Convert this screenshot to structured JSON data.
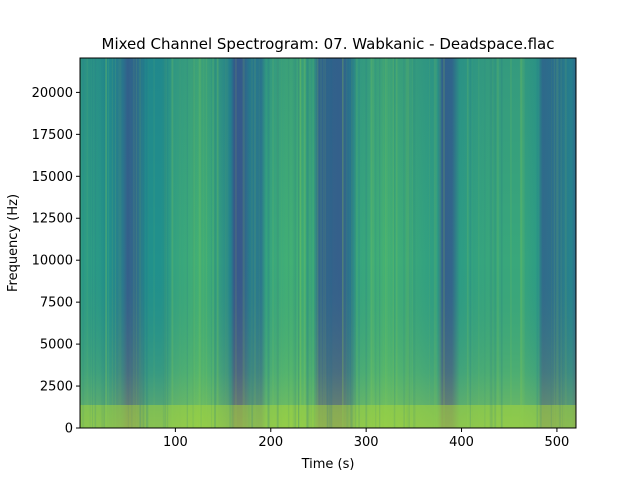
{
  "chart_data": {
    "type": "heatmap",
    "title": "Mixed Channel Spectrogram: 07. Wabkanic - Deadspace.flac",
    "xlabel": "Time (s)",
    "ylabel": "Frequency (Hz)",
    "xlim": [
      0,
      520
    ],
    "ylim": [
      0,
      22050
    ],
    "x_ticks": [
      100,
      200,
      300,
      400,
      500
    ],
    "y_ticks": [
      0,
      2500,
      5000,
      7500,
      10000,
      12500,
      15000,
      17500,
      20000
    ],
    "colormap": "viridis",
    "colors": {
      "dark_band": "#267d8f",
      "mid": "#3aa28a",
      "bright": "#6cc463",
      "low_freq_hot": "#b3de30"
    },
    "intensity_profile": [
      {
        "time": 0,
        "level": 0.55
      },
      {
        "time": 15,
        "level": 0.55
      },
      {
        "time": 30,
        "level": 0.5
      },
      {
        "time": 45,
        "level": 0.4
      },
      {
        "time": 50,
        "level": 0.3
      },
      {
        "time": 60,
        "level": 0.36
      },
      {
        "time": 70,
        "level": 0.5
      },
      {
        "time": 85,
        "level": 0.5
      },
      {
        "time": 100,
        "level": 0.58
      },
      {
        "time": 125,
        "level": 0.64
      },
      {
        "time": 140,
        "level": 0.6
      },
      {
        "time": 158,
        "level": 0.45
      },
      {
        "time": 162,
        "level": 0.27
      },
      {
        "time": 170,
        "level": 0.28
      },
      {
        "time": 178,
        "level": 0.42
      },
      {
        "time": 190,
        "level": 0.4
      },
      {
        "time": 195,
        "level": 0.58
      },
      {
        "time": 220,
        "level": 0.64
      },
      {
        "time": 245,
        "level": 0.6
      },
      {
        "time": 250,
        "level": 0.33
      },
      {
        "time": 275,
        "level": 0.3
      },
      {
        "time": 285,
        "level": 0.42
      },
      {
        "time": 290,
        "level": 0.58
      },
      {
        "time": 320,
        "level": 0.64
      },
      {
        "time": 350,
        "level": 0.6
      },
      {
        "time": 375,
        "level": 0.55
      },
      {
        "time": 380,
        "level": 0.3
      },
      {
        "time": 390,
        "level": 0.33
      },
      {
        "time": 398,
        "level": 0.55
      },
      {
        "time": 430,
        "level": 0.6
      },
      {
        "time": 460,
        "level": 0.6
      },
      {
        "time": 480,
        "level": 0.55
      },
      {
        "time": 485,
        "level": 0.35
      },
      {
        "time": 500,
        "level": 0.38
      },
      {
        "time": 515,
        "level": 0.45
      },
      {
        "time": 520,
        "level": 0.35
      }
    ]
  }
}
